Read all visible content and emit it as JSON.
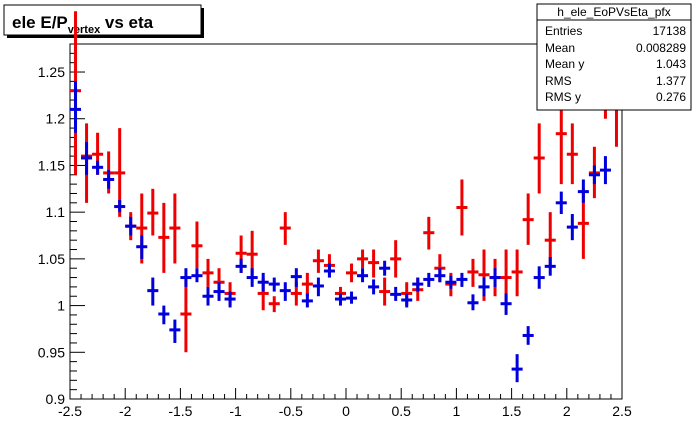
{
  "chart_data": {
    "type": "scatter",
    "title_main": "ele E/P",
    "title_sub": "vertex",
    "title_rest": " vs eta",
    "xlim": [
      -2.5,
      2.5
    ],
    "ylim": [
      0.9,
      1.28
    ],
    "x_ticks": [
      "-2.5",
      "-2",
      "-1.5",
      "-1",
      "-0.5",
      "0",
      "0.5",
      "1",
      "1.5",
      "2",
      "2.5"
    ],
    "y_ticks": [
      "0.9",
      "0.95",
      "1",
      "1.05",
      "1.1",
      "1.15",
      "1.2",
      "1.25"
    ],
    "stats": {
      "name": "h_ele_EoPVsEta_pfx",
      "rows": [
        {
          "label": "Entries",
          "value": "17138"
        },
        {
          "label": "Mean",
          "value": "0.008289"
        },
        {
          "label": "Mean y",
          "value": "1.043"
        },
        {
          "label": "RMS",
          "value": "1.377"
        },
        {
          "label": "RMS y",
          "value": "0.276"
        }
      ]
    },
    "series": [
      {
        "color": "#ee0000",
        "points": [
          {
            "x": -2.45,
            "y": 1.23,
            "lo": 1.14,
            "hi": 1.315
          },
          {
            "x": -2.35,
            "y": 1.16,
            "lo": 1.11,
            "hi": 1.195
          },
          {
            "x": -2.25,
            "y": 1.162,
            "lo": 1.14,
            "hi": 1.185
          },
          {
            "x": -2.15,
            "y": 1.142,
            "lo": 1.12,
            "hi": 1.165
          },
          {
            "x": -2.05,
            "y": 1.142,
            "lo": 1.095,
            "hi": 1.19
          },
          {
            "x": -1.95,
            "y": 1.085,
            "lo": 1.07,
            "hi": 1.1
          },
          {
            "x": -1.85,
            "y": 1.083,
            "lo": 1.045,
            "hi": 1.12
          },
          {
            "x": -1.75,
            "y": 1.099,
            "lo": 1.075,
            "hi": 1.125
          },
          {
            "x": -1.65,
            "y": 1.073,
            "lo": 1.035,
            "hi": 1.11
          },
          {
            "x": -1.55,
            "y": 1.083,
            "lo": 1.045,
            "hi": 1.12
          },
          {
            "x": -1.45,
            "y": 0.991,
            "lo": 0.95,
            "hi": 1.03
          },
          {
            "x": -1.35,
            "y": 1.064,
            "lo": 1.04,
            "hi": 1.09
          },
          {
            "x": -1.25,
            "y": 1.035,
            "lo": 1.02,
            "hi": 1.05
          },
          {
            "x": -1.15,
            "y": 1.025,
            "lo": 1.01,
            "hi": 1.04
          },
          {
            "x": -1.05,
            "y": 1.013,
            "lo": 1.0,
            "hi": 1.025
          },
          {
            "x": -0.95,
            "y": 1.056,
            "lo": 1.035,
            "hi": 1.075
          },
          {
            "x": -0.85,
            "y": 1.055,
            "lo": 1.03,
            "hi": 1.08
          },
          {
            "x": -0.75,
            "y": 1.013,
            "lo": 0.995,
            "hi": 1.03
          },
          {
            "x": -0.65,
            "y": 1.002,
            "lo": 0.993,
            "hi": 1.01
          },
          {
            "x": -0.55,
            "y": 1.083,
            "lo": 1.065,
            "hi": 1.1
          },
          {
            "x": -0.45,
            "y": 1.013,
            "lo": 1.0,
            "hi": 1.025
          },
          {
            "x": -0.35,
            "y": 1.023,
            "lo": 1.01,
            "hi": 1.035
          },
          {
            "x": -0.25,
            "y": 1.048,
            "lo": 1.035,
            "hi": 1.06
          },
          {
            "x": -0.15,
            "y": 1.043,
            "lo": 1.03,
            "hi": 1.055
          },
          {
            "x": -0.05,
            "y": 1.013,
            "lo": 1.005,
            "hi": 1.02
          },
          {
            "x": 0.05,
            "y": 1.035,
            "lo": 1.025,
            "hi": 1.045
          },
          {
            "x": 0.15,
            "y": 1.05,
            "lo": 1.04,
            "hi": 1.06
          },
          {
            "x": 0.25,
            "y": 1.046,
            "lo": 1.03,
            "hi": 1.06
          },
          {
            "x": 0.35,
            "y": 1.015,
            "lo": 1.0,
            "hi": 1.03
          },
          {
            "x": 0.45,
            "y": 1.05,
            "lo": 1.03,
            "hi": 1.07
          },
          {
            "x": 0.55,
            "y": 1.013,
            "lo": 1.0,
            "hi": 1.025
          },
          {
            "x": 0.65,
            "y": 1.017,
            "lo": 1.005,
            "hi": 1.03
          },
          {
            "x": 0.75,
            "y": 1.078,
            "lo": 1.06,
            "hi": 1.095
          },
          {
            "x": 0.85,
            "y": 1.04,
            "lo": 1.025,
            "hi": 1.055
          },
          {
            "x": 0.95,
            "y": 1.023,
            "lo": 1.01,
            "hi": 1.035
          },
          {
            "x": 1.05,
            "y": 1.105,
            "lo": 1.075,
            "hi": 1.135
          },
          {
            "x": 1.15,
            "y": 1.036,
            "lo": 1.02,
            "hi": 1.05
          },
          {
            "x": 1.25,
            "y": 1.033,
            "lo": 1.005,
            "hi": 1.06
          },
          {
            "x": 1.35,
            "y": 1.03,
            "lo": 1.01,
            "hi": 1.05
          },
          {
            "x": 1.45,
            "y": 1.03,
            "lo": 1.0,
            "hi": 1.06
          },
          {
            "x": 1.55,
            "y": 1.036,
            "lo": 1.01,
            "hi": 1.06
          },
          {
            "x": 1.65,
            "y": 1.092,
            "lo": 1.065,
            "hi": 1.12
          },
          {
            "x": 1.75,
            "y": 1.158,
            "lo": 1.12,
            "hi": 1.195
          },
          {
            "x": 1.85,
            "y": 1.07,
            "lo": 1.04,
            "hi": 1.1
          },
          {
            "x": 1.95,
            "y": 1.184,
            "lo": 1.13,
            "hi": 1.24
          },
          {
            "x": 2.05,
            "y": 1.162,
            "lo": 1.13,
            "hi": 1.195
          },
          {
            "x": 2.15,
            "y": 1.088,
            "lo": 1.05,
            "hi": 1.125
          },
          {
            "x": 2.25,
            "y": 1.142,
            "lo": 1.115,
            "hi": 1.17
          },
          {
            "x": 2.35,
            "y": 1.232,
            "lo": 1.2,
            "hi": 1.265
          },
          {
            "x": 2.45,
            "y": 1.22,
            "lo": 1.17,
            "hi": 1.28
          }
        ]
      },
      {
        "color": "#0000dd",
        "points": [
          {
            "x": -2.45,
            "y": 1.21,
            "lo": 1.185,
            "hi": 1.24
          },
          {
            "x": -2.35,
            "y": 1.158,
            "lo": 1.14,
            "hi": 1.175
          },
          {
            "x": -2.25,
            "y": 1.148,
            "lo": 1.14,
            "hi": 1.155
          },
          {
            "x": -2.15,
            "y": 1.135,
            "lo": 1.125,
            "hi": 1.145
          },
          {
            "x": -2.05,
            "y": 1.106,
            "lo": 1.1,
            "hi": 1.113
          },
          {
            "x": -1.95,
            "y": 1.085,
            "lo": 1.075,
            "hi": 1.095
          },
          {
            "x": -1.85,
            "y": 1.063,
            "lo": 1.05,
            "hi": 1.075
          },
          {
            "x": -1.75,
            "y": 1.016,
            "lo": 1.0,
            "hi": 1.03
          },
          {
            "x": -1.65,
            "y": 0.991,
            "lo": 0.98,
            "hi": 1.0
          },
          {
            "x": -1.55,
            "y": 0.974,
            "lo": 0.96,
            "hi": 0.985
          },
          {
            "x": -1.45,
            "y": 1.03,
            "lo": 1.02,
            "hi": 1.04
          },
          {
            "x": -1.35,
            "y": 1.032,
            "lo": 1.025,
            "hi": 1.04
          },
          {
            "x": -1.25,
            "y": 1.01,
            "lo": 1.0,
            "hi": 1.02
          },
          {
            "x": -1.15,
            "y": 1.015,
            "lo": 1.005,
            "hi": 1.025
          },
          {
            "x": -1.05,
            "y": 1.007,
            "lo": 0.998,
            "hi": 1.015
          },
          {
            "x": -0.95,
            "y": 1.042,
            "lo": 1.035,
            "hi": 1.05
          },
          {
            "x": -0.85,
            "y": 1.03,
            "lo": 1.02,
            "hi": 1.04
          },
          {
            "x": -0.75,
            "y": 1.025,
            "lo": 1.015,
            "hi": 1.035
          },
          {
            "x": -0.65,
            "y": 1.023,
            "lo": 1.015,
            "hi": 1.03
          },
          {
            "x": -0.55,
            "y": 1.016,
            "lo": 1.005,
            "hi": 1.025
          },
          {
            "x": -0.45,
            "y": 1.031,
            "lo": 1.02,
            "hi": 1.04
          },
          {
            "x": -0.35,
            "y": 1.005,
            "lo": 0.998,
            "hi": 1.013
          },
          {
            "x": -0.25,
            "y": 1.021,
            "lo": 1.01,
            "hi": 1.03
          },
          {
            "x": -0.15,
            "y": 1.037,
            "lo": 1.03,
            "hi": 1.045
          },
          {
            "x": -0.05,
            "y": 1.007,
            "lo": 1.0,
            "hi": 1.013
          },
          {
            "x": 0.05,
            "y": 1.008,
            "lo": 1.002,
            "hi": 1.015
          },
          {
            "x": 0.15,
            "y": 1.032,
            "lo": 1.025,
            "hi": 1.04
          },
          {
            "x": 0.25,
            "y": 1.02,
            "lo": 1.012,
            "hi": 1.028
          },
          {
            "x": 0.35,
            "y": 1.04,
            "lo": 1.032,
            "hi": 1.048
          },
          {
            "x": 0.45,
            "y": 1.012,
            "lo": 1.005,
            "hi": 1.02
          },
          {
            "x": 0.55,
            "y": 1.006,
            "lo": 0.998,
            "hi": 1.013
          },
          {
            "x": 0.65,
            "y": 1.023,
            "lo": 1.015,
            "hi": 1.03
          },
          {
            "x": 0.75,
            "y": 1.028,
            "lo": 1.02,
            "hi": 1.035
          },
          {
            "x": 0.85,
            "y": 1.032,
            "lo": 1.025,
            "hi": 1.04
          },
          {
            "x": 0.95,
            "y": 1.025,
            "lo": 1.018,
            "hi": 1.032
          },
          {
            "x": 1.05,
            "y": 1.028,
            "lo": 1.02,
            "hi": 1.035
          },
          {
            "x": 1.15,
            "y": 1.003,
            "lo": 0.995,
            "hi": 1.012
          },
          {
            "x": 1.25,
            "y": 1.02,
            "lo": 1.01,
            "hi": 1.03
          },
          {
            "x": 1.35,
            "y": 1.03,
            "lo": 1.02,
            "hi": 1.04
          },
          {
            "x": 1.45,
            "y": 1.002,
            "lo": 0.99,
            "hi": 1.013
          },
          {
            "x": 1.55,
            "y": 0.932,
            "lo": 0.918,
            "hi": 0.948
          },
          {
            "x": 1.65,
            "y": 0.968,
            "lo": 0.958,
            "hi": 0.978
          },
          {
            "x": 1.75,
            "y": 1.03,
            "lo": 1.018,
            "hi": 1.042
          },
          {
            "x": 1.85,
            "y": 1.042,
            "lo": 1.032,
            "hi": 1.052
          },
          {
            "x": 1.95,
            "y": 1.11,
            "lo": 1.098,
            "hi": 1.122
          },
          {
            "x": 2.05,
            "y": 1.084,
            "lo": 1.07,
            "hi": 1.098
          },
          {
            "x": 2.15,
            "y": 1.122,
            "lo": 1.11,
            "hi": 1.135
          },
          {
            "x": 2.25,
            "y": 1.14,
            "lo": 1.13,
            "hi": 1.15
          },
          {
            "x": 2.35,
            "y": 1.145,
            "lo": 1.13,
            "hi": 1.16
          }
        ]
      }
    ]
  }
}
